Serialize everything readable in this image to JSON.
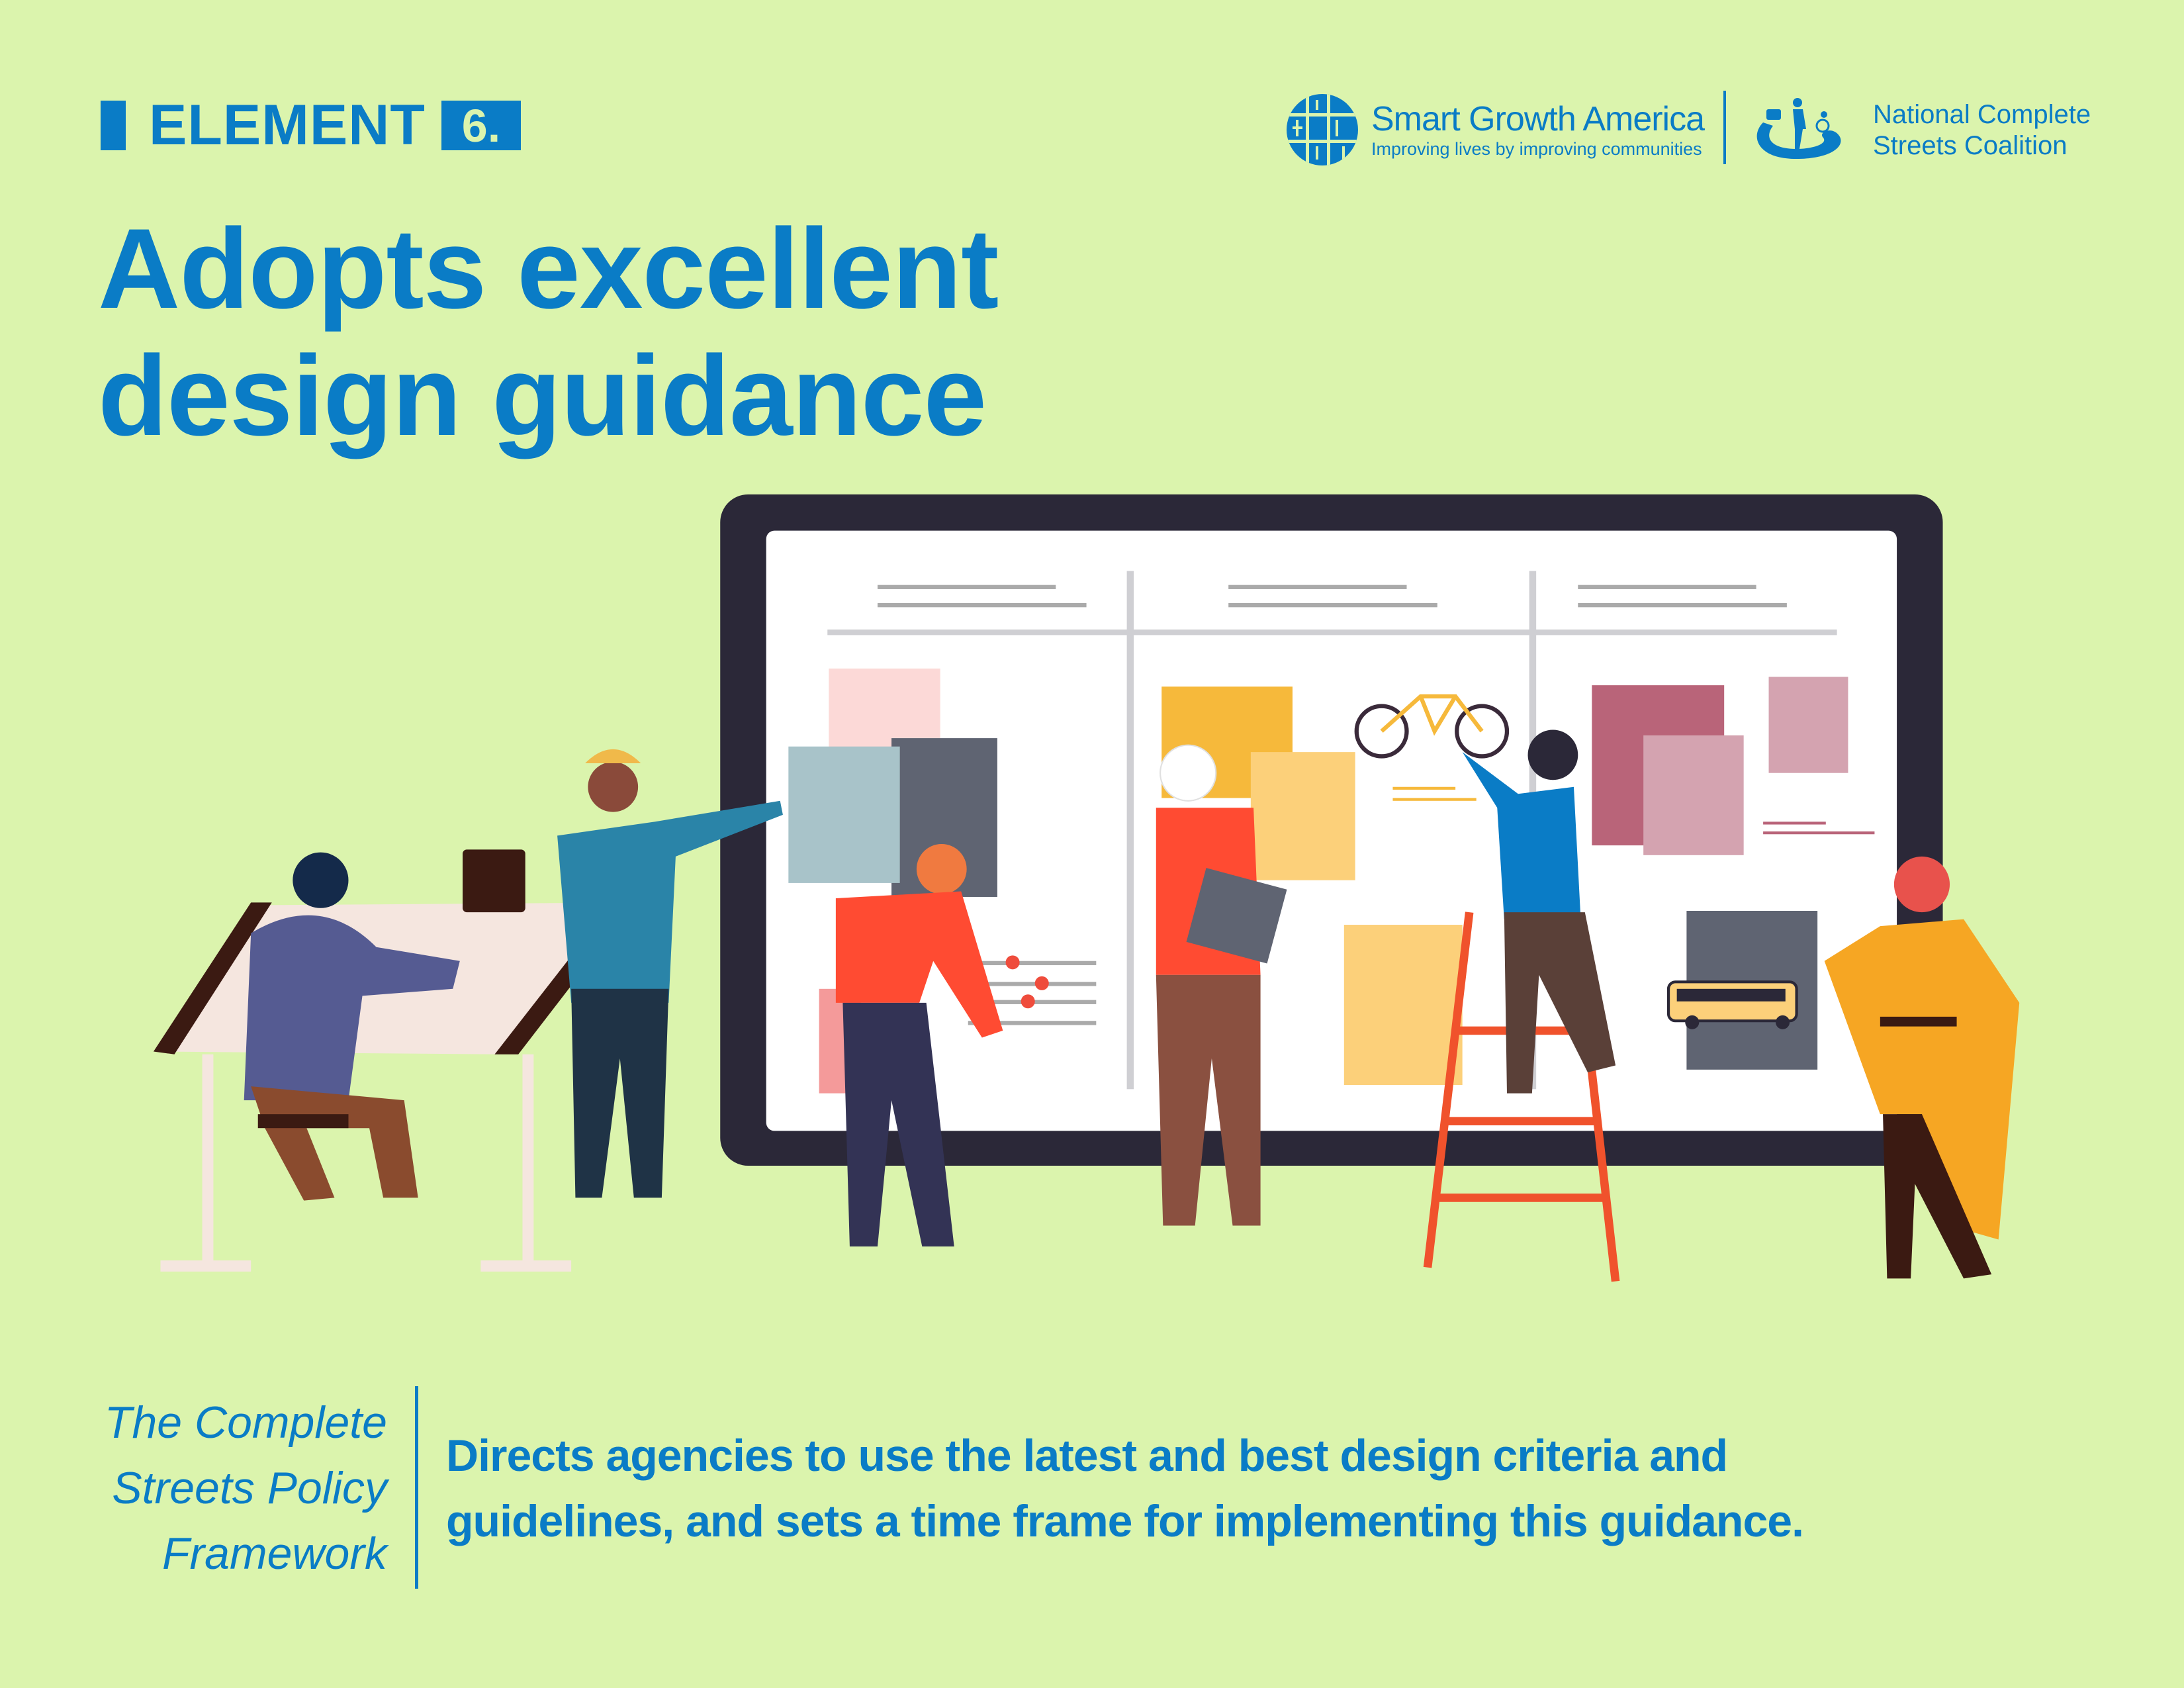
{
  "header": {
    "element_label": "ELEMENT",
    "element_number": "6.",
    "title_line1": "Adopts excellent",
    "title_line2": "design guidance"
  },
  "logos": {
    "sga_name": "Smart Growth America",
    "sga_tagline": "Improving lives by improving communities",
    "ncsc_line1": "National Complete",
    "ncsc_line2": "Streets Coalition"
  },
  "footer": {
    "framework_line1": "The Complete",
    "framework_line2": "Streets Policy",
    "framework_line3": "Framework",
    "description_line1": "Directs agencies to use the latest and best design criteria and",
    "description_line2": "guidelines, and sets a time frame for implementing this guidance."
  },
  "colors": {
    "background": "#dbf4ad",
    "brand_blue": "#0a7cc6",
    "board_frame": "#2b2838"
  }
}
